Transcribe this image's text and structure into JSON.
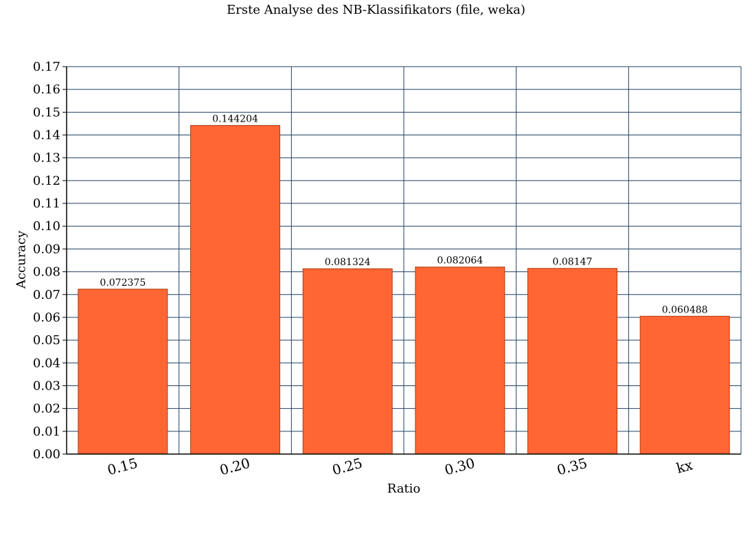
{
  "chart_data": {
    "type": "bar",
    "title": "Erste Analyse des NB-Klassifikators (file, weka)",
    "xlabel": "Ratio",
    "ylabel": "Accuracy",
    "categories": [
      "0.15",
      "0.20",
      "0.25",
      "0.30",
      "0.35",
      "kx"
    ],
    "values": [
      0.072375,
      0.144204,
      0.081324,
      0.082064,
      0.08147,
      0.060488
    ],
    "data_labels": [
      "0.072375",
      "0.144204",
      "0.081324",
      "0.082064",
      "0.08147",
      "0.060488"
    ],
    "ylim": [
      0,
      0.17
    ],
    "yticks": [
      "0.00",
      "0.01",
      "0.02",
      "0.03",
      "0.04",
      "0.05",
      "0.06",
      "0.07",
      "0.08",
      "0.09",
      "0.10",
      "0.11",
      "0.12",
      "0.13",
      "0.14",
      "0.15",
      "0.16",
      "0.17"
    ],
    "grid": true,
    "legend": "none",
    "bar_color": "#ff6633",
    "grid_color": "#1f3f5f"
  }
}
